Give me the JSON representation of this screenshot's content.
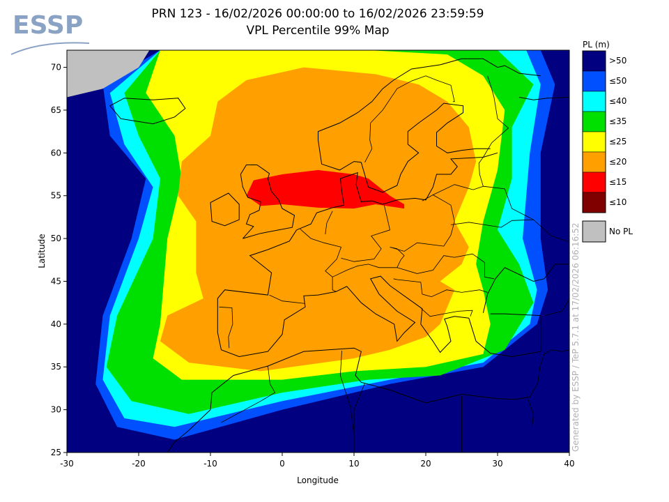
{
  "logo": {
    "text": "ESSP"
  },
  "title": {
    "line1": "PRN 123 - 16/02/2026 00:00:00 to 16/02/2026 23:59:59",
    "line2": "VPL Percentile 99% Map"
  },
  "axes": {
    "xlabel": "Longitude",
    "ylabel": "Latitude",
    "xticks": [
      "-30",
      "-20",
      "-10",
      "0",
      "10",
      "20",
      "30",
      "40"
    ],
    "yticks": [
      "25",
      "30",
      "35",
      "40",
      "45",
      "50",
      "55",
      "60",
      "65",
      "70"
    ]
  },
  "legend": {
    "title": "PL (m)",
    "items": [
      {
        "label": ">50",
        "color": "#000080"
      },
      {
        "label": "≤50",
        "color": "#0050ff"
      },
      {
        "label": "≤40",
        "color": "#00ffff"
      },
      {
        "label": "≤35",
        "color": "#00e000"
      },
      {
        "label": "≤25",
        "color": "#ffff00"
      },
      {
        "label": "≤20",
        "color": "#ffa000"
      },
      {
        "label": "≤15",
        "color": "#ff0000"
      },
      {
        "label": "≤10",
        "color": "#800000"
      }
    ],
    "nopl": {
      "label": "No PL",
      "color": "#c0c0c0"
    }
  },
  "generated": "Generated by ESSP / TeP 5.7.1 at 17/02/2026 06:16:52",
  "chart_data": {
    "type": "heatmap",
    "title": "PRN 123 - 16/02/2026 00:00:00 to 16/02/2026 23:59:59",
    "subtitle": "VPL Percentile 99% Map",
    "xlabel": "Longitude",
    "ylabel": "Latitude",
    "xlim": [
      -30,
      40
    ],
    "ylim": [
      25,
      72
    ],
    "colors": {
      "gt50": "#000080",
      "le50": "#0050ff",
      "le40": "#00ffff",
      "le35": "#00e000",
      "le25": "#ffff00",
      "le20": "#ffa000",
      "le15": "#ff0000",
      "le10": "#800000",
      "nopl": "#c0c0c0"
    },
    "regions": [
      {
        "level": "le50",
        "points": [
          [
            -25,
            41
          ],
          [
            -26,
            33
          ],
          [
            -23,
            28
          ],
          [
            -15,
            26.5
          ],
          [
            0,
            30
          ],
          [
            15,
            33
          ],
          [
            28,
            35
          ],
          [
            35.5,
            40
          ],
          [
            37,
            44
          ],
          [
            36,
            50
          ],
          [
            36,
            60
          ],
          [
            38,
            68
          ],
          [
            36,
            72
          ],
          [
            -17,
            72
          ],
          [
            -25,
            68
          ],
          [
            -24,
            62
          ],
          [
            -19,
            57
          ],
          [
            -21,
            50
          ]
        ]
      },
      {
        "level": "le40",
        "points": [
          [
            -24,
            41
          ],
          [
            -25,
            33.5
          ],
          [
            -22,
            29
          ],
          [
            -15,
            28
          ],
          [
            0,
            31
          ],
          [
            15,
            33.5
          ],
          [
            28,
            35.5
          ],
          [
            34.5,
            40
          ],
          [
            35.5,
            44
          ],
          [
            33.5,
            50
          ],
          [
            34.5,
            60
          ],
          [
            36,
            68
          ],
          [
            34,
            72
          ],
          [
            -17,
            72
          ],
          [
            -24,
            67
          ],
          [
            -22,
            61
          ],
          [
            -18,
            56
          ],
          [
            -20,
            50
          ]
        ]
      },
      {
        "level": "le35",
        "points": [
          [
            -23,
            41
          ],
          [
            -24.5,
            35
          ],
          [
            -21,
            31
          ],
          [
            -13,
            29.5
          ],
          [
            0,
            32
          ],
          [
            12,
            33.5
          ],
          [
            22,
            34
          ],
          [
            31,
            37
          ],
          [
            35,
            42.5
          ],
          [
            33,
            47
          ],
          [
            30,
            51
          ],
          [
            32,
            57
          ],
          [
            32,
            63
          ],
          [
            35,
            68
          ],
          [
            30,
            72
          ],
          [
            -17,
            72
          ],
          [
            -22,
            67
          ],
          [
            -20,
            62
          ],
          [
            -17,
            57
          ],
          [
            -18,
            50
          ]
        ]
      },
      {
        "level": "le25",
        "points": [
          [
            -17,
            40
          ],
          [
            -18,
            36
          ],
          [
            -14,
            33.5
          ],
          [
            0,
            33.5
          ],
          [
            10,
            34.5
          ],
          [
            20,
            35
          ],
          [
            28,
            36.5
          ],
          [
            29,
            40
          ],
          [
            28,
            44
          ],
          [
            27,
            47
          ],
          [
            28,
            52
          ],
          [
            30,
            58
          ],
          [
            31,
            65
          ],
          [
            28,
            69
          ],
          [
            23,
            71.5
          ],
          [
            12,
            72
          ],
          [
            -17,
            72
          ],
          [
            -19,
            67
          ],
          [
            -15,
            62
          ],
          [
            -14,
            57
          ],
          [
            -16,
            50
          ]
        ]
      },
      {
        "level": "le20",
        "points": [
          [
            -17,
            38
          ],
          [
            -13,
            35.5
          ],
          [
            -3,
            34.5
          ],
          [
            10,
            36
          ],
          [
            15,
            37
          ],
          [
            20,
            38.5
          ],
          [
            22,
            40
          ],
          [
            24,
            44
          ],
          [
            22,
            45
          ],
          [
            25,
            47
          ],
          [
            26,
            49
          ],
          [
            24,
            52
          ],
          [
            26,
            56
          ],
          [
            27,
            59
          ],
          [
            26,
            63
          ],
          [
            23,
            66
          ],
          [
            19,
            68
          ],
          [
            13,
            69.2
          ],
          [
            3,
            70
          ],
          [
            -5,
            68.5
          ],
          [
            -9,
            66
          ],
          [
            -10,
            62
          ],
          [
            -14,
            59
          ],
          [
            -14.5,
            55
          ],
          [
            -12,
            52
          ],
          [
            -12,
            46
          ],
          [
            -11,
            43
          ],
          [
            -16,
            41
          ]
        ]
      },
      {
        "level": "le15",
        "points": [
          [
            -5,
            55
          ],
          [
            -4,
            56.8
          ],
          [
            0,
            57.5
          ],
          [
            5,
            58
          ],
          [
            10,
            57.5
          ],
          [
            12,
            57
          ],
          [
            15,
            55
          ],
          [
            17,
            54
          ],
          [
            17,
            53.5
          ],
          [
            13,
            54
          ],
          [
            10,
            53.5
          ],
          [
            5,
            53.6
          ],
          [
            0,
            54
          ],
          [
            -3,
            53.8
          ]
        ]
      },
      {
        "level": "nopl",
        "points": [
          [
            -30,
            72
          ],
          [
            -30,
            66.5
          ],
          [
            -25,
            67.5
          ],
          [
            -20,
            70
          ],
          [
            -18.5,
            72
          ]
        ]
      }
    ]
  }
}
